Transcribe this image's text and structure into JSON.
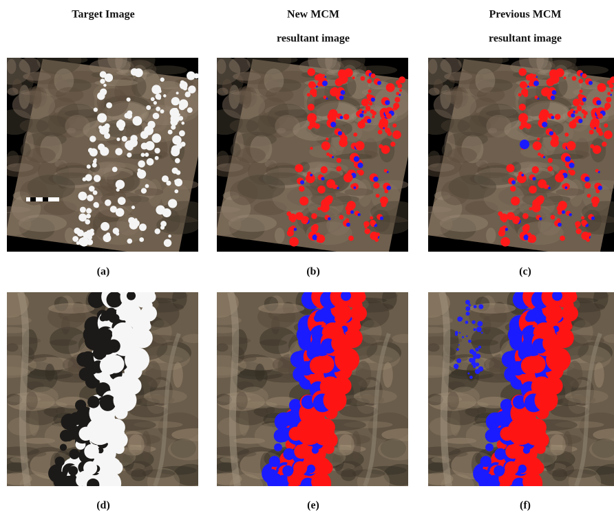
{
  "columns": [
    {
      "title": [
        "Target Image"
      ]
    },
    {
      "title": [
        "New MCM",
        "resultant image"
      ]
    },
    {
      "title": [
        "Previous MCM",
        "resultant image"
      ]
    }
  ],
  "captions": [
    "(a)",
    "(b)",
    "(c)",
    "(d)",
    "(e)",
    "(f)"
  ]
}
